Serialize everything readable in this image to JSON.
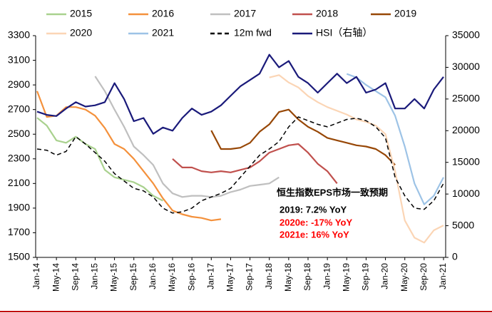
{
  "chart_data": {
    "type": "line",
    "categories": [
      "Jan-14",
      null,
      "May-14",
      null,
      "Sep-14",
      null,
      "Jan-15",
      null,
      "May-15",
      null,
      "Sep-15",
      null,
      "Jan-16",
      null,
      "May-16",
      null,
      "Sep-16",
      null,
      "Jan-17",
      null,
      "May-17",
      null,
      "Sep-17",
      null,
      "Jan-18",
      null,
      "May-18",
      null,
      "Sep-18",
      null,
      "Jan-19",
      null,
      "May-19",
      null,
      "Sep-19",
      null,
      "Jan-20",
      null,
      "May-20",
      null,
      "Sep-20",
      null,
      "Jan-21"
    ],
    "ylim": [
      1500,
      3300
    ],
    "yticks": [
      1500,
      1700,
      1900,
      2100,
      2300,
      2500,
      2700,
      2900,
      3100,
      3300
    ],
    "y2lim": [
      0,
      35000
    ],
    "y2ticks": [
      0,
      5000,
      10000,
      15000,
      20000,
      25000,
      30000,
      35000
    ],
    "series": [
      {
        "name": "2015",
        "color": "#a9d18e",
        "values": [
          2633,
          2570,
          2450,
          2430,
          2480,
          2420,
          2380,
          2210,
          2150,
          2130,
          2110,
          2070,
          2000,
          1960,
          null,
          null,
          null,
          null,
          null,
          null,
          null,
          null,
          null,
          null,
          null,
          null,
          null,
          null,
          null,
          null,
          null,
          null,
          null,
          null,
          null,
          null,
          null,
          null,
          null,
          null,
          null,
          null,
          null
        ]
      },
      {
        "name": "2016",
        "color": "#f4913c",
        "values": [
          2850,
          2640,
          2650,
          2720,
          2720,
          2700,
          2650,
          2550,
          2420,
          2380,
          2300,
          2200,
          2100,
          1980,
          1880,
          1850,
          1830,
          1820,
          1800,
          1810,
          null,
          null,
          null,
          null,
          null,
          null,
          null,
          null,
          null,
          null,
          null,
          null,
          null,
          null,
          null,
          null,
          null,
          null,
          null,
          null,
          null,
          null,
          null
        ]
      },
      {
        "name": "2017",
        "color": "#bfbfbf",
        "values": [
          null,
          null,
          null,
          null,
          null,
          null,
          2970,
          2850,
          2700,
          2560,
          2400,
          2330,
          2250,
          2100,
          2020,
          1990,
          2000,
          2000,
          1990,
          2000,
          2030,
          2050,
          2080,
          2090,
          2100,
          2150,
          null,
          null,
          null,
          null,
          null,
          null,
          null,
          null,
          null,
          null,
          null,
          null,
          null,
          null,
          null,
          null,
          null
        ]
      },
      {
        "name": "2018",
        "color": "#c0504d",
        "values": [
          null,
          null,
          null,
          null,
          null,
          null,
          null,
          null,
          null,
          null,
          null,
          null,
          null,
          null,
          2300,
          2230,
          2230,
          2200,
          2190,
          2200,
          2190,
          2210,
          2230,
          2280,
          2350,
          2380,
          2410,
          2420,
          2350,
          2260,
          2200,
          2100,
          null,
          null,
          null,
          null,
          null,
          null,
          null,
          null,
          null,
          null,
          null
        ]
      },
      {
        "name": "2019",
        "color": "#974706",
        "values": [
          null,
          null,
          null,
          null,
          null,
          null,
          null,
          null,
          null,
          null,
          null,
          null,
          null,
          null,
          null,
          null,
          null,
          null,
          2530,
          2380,
          2380,
          2390,
          2430,
          2520,
          2580,
          2680,
          2700,
          2620,
          2560,
          2520,
          2470,
          2450,
          2430,
          2410,
          2400,
          2380,
          2330,
          2250,
          null,
          null,
          null,
          null,
          null
        ]
      },
      {
        "name": "2020",
        "color": "#fbd5b5",
        "values": [
          null,
          null,
          null,
          null,
          null,
          null,
          null,
          null,
          null,
          null,
          null,
          null,
          null,
          null,
          null,
          null,
          null,
          null,
          null,
          null,
          null,
          null,
          null,
          null,
          2960,
          2980,
          2920,
          2880,
          2810,
          2760,
          2720,
          2690,
          2660,
          2620,
          2600,
          2570,
          2500,
          2200,
          1800,
          1660,
          1620,
          1720,
          1760
        ]
      },
      {
        "name": "2021",
        "color": "#9dc3e6",
        "values": [
          null,
          null,
          null,
          null,
          null,
          null,
          null,
          null,
          null,
          null,
          null,
          null,
          null,
          null,
          null,
          null,
          null,
          null,
          null,
          null,
          null,
          null,
          null,
          null,
          null,
          null,
          null,
          null,
          null,
          null,
          null,
          null,
          2990,
          2960,
          2900,
          2850,
          2800,
          2650,
          2400,
          2100,
          1930,
          2000,
          2150
        ]
      },
      {
        "name": "12m fwd",
        "color": "#000000",
        "dash": true,
        "values": [
          2380,
          2370,
          2330,
          2360,
          2480,
          2420,
          2350,
          2280,
          2180,
          2120,
          2060,
          2040,
          1990,
          1900,
          1860,
          1870,
          1900,
          1960,
          1990,
          2020,
          2060,
          2150,
          2240,
          2330,
          2380,
          2440,
          2560,
          2640,
          2610,
          2580,
          2560,
          2590,
          2620,
          2630,
          2610,
          2560,
          2470,
          2150,
          2000,
          1900,
          1890,
          1960,
          2100
        ]
      },
      {
        "name": "HSI（右轴）",
        "color": "#1a1a7a",
        "axis": "y2",
        "values": [
          23000,
          22500,
          22300,
          23500,
          24500,
          23800,
          24000,
          24500,
          27500,
          25000,
          21500,
          22000,
          19500,
          20500,
          20000,
          22000,
          23500,
          22500,
          23000,
          24000,
          25500,
          27000,
          28000,
          29000,
          32000,
          30000,
          31000,
          28500,
          27500,
          26000,
          27500,
          29000,
          27500,
          28500,
          26000,
          26500,
          27500,
          23500,
          23500,
          25000,
          23500,
          26500,
          28500
        ]
      }
    ],
    "annotations": [
      {
        "text": "恒生指数EPS市场一致预期",
        "color": "#000000"
      },
      {
        "text": "2019: 7.2% YoY",
        "color": "#000000"
      },
      {
        "text": "2020e: -17% YoY",
        "color": "#ff0000"
      },
      {
        "text": "2021e: 16% YoY",
        "color": "#ff0000"
      }
    ]
  }
}
